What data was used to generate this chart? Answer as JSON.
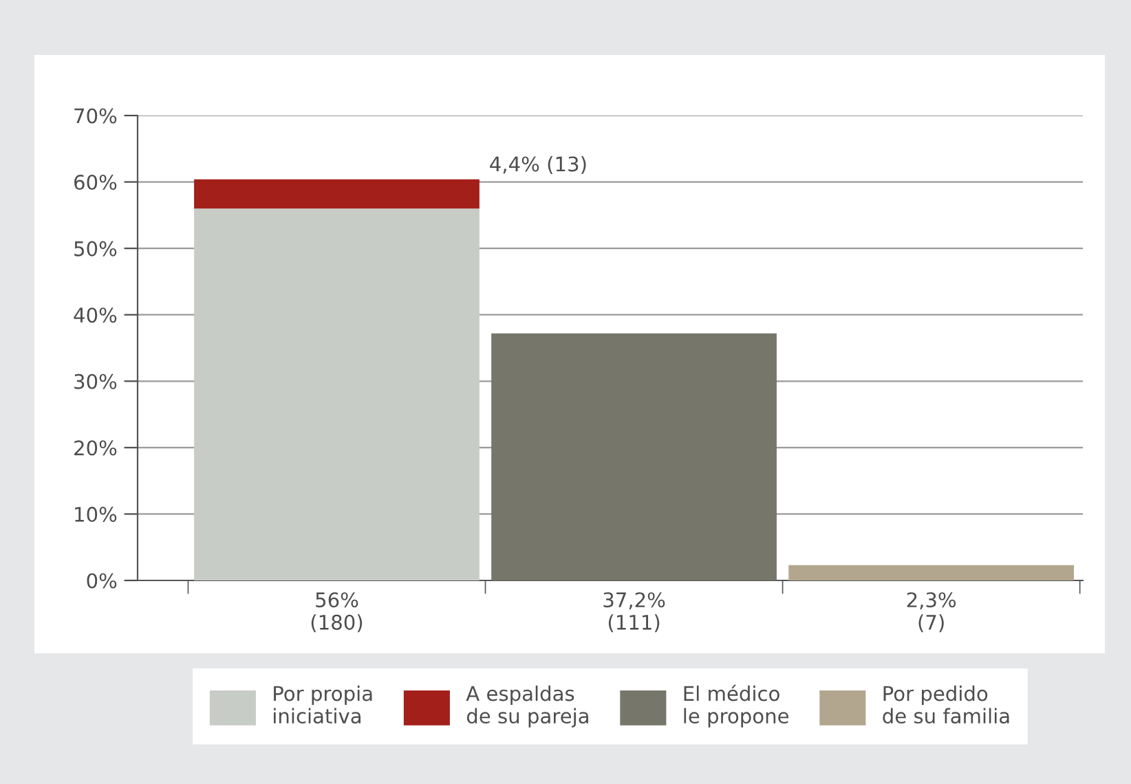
{
  "chart_data": {
    "type": "bar",
    "stacked": true,
    "categories": [
      "56%\n(180)",
      "37,2%\n(111)",
      "2,3%\n(7)"
    ],
    "series": [
      {
        "name": "Por propia\niniciativa",
        "color": "#c8ccc6",
        "values": [
          56,
          null,
          null
        ]
      },
      {
        "name": "A espaldas\nde su pareja",
        "color": "#a31f1a",
        "values": [
          4.4,
          null,
          null
        ]
      },
      {
        "name": "El médico\nle propone",
        "color": "#76776a",
        "values": [
          null,
          37.2,
          null
        ]
      },
      {
        "name": "Por pedido\nde su familia",
        "color": "#b3a68e",
        "values": [
          null,
          null,
          2.3
        ]
      }
    ],
    "annotations": [
      "4,4% (13)"
    ],
    "ylim": [
      0,
      70
    ],
    "yticks": [
      {
        "value": 0,
        "label": "0%"
      },
      {
        "value": 10,
        "label": "10%"
      },
      {
        "value": 20,
        "label": "20%"
      },
      {
        "value": 30,
        "label": "30%"
      },
      {
        "value": 40,
        "label": "40%"
      },
      {
        "value": 50,
        "label": "50%"
      },
      {
        "value": 60,
        "label": "60%"
      },
      {
        "value": 70,
        "label": "70%"
      }
    ],
    "grid": "y",
    "legend": "bottom"
  }
}
